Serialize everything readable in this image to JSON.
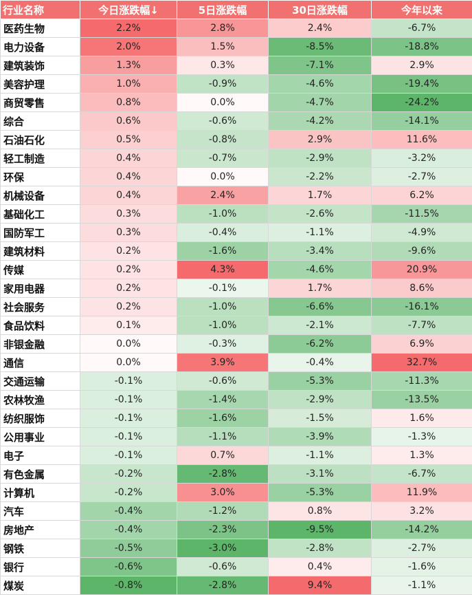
{
  "table": {
    "headers": [
      "行业名称",
      "今日涨跌幅↓",
      "5日涨跌幅",
      "30日涨跌幅",
      "今年以来"
    ],
    "colors": {
      "header_bg": "#f0716f",
      "positive_max": "#f56a6c",
      "negative_max": "#5db56a",
      "neutral": "#ffffff"
    },
    "rows": [
      [
        "医药生物",
        "2.2%",
        "2.8%",
        "2.4%",
        "-6.7%"
      ],
      [
        "电力设备",
        "2.0%",
        "1.5%",
        "-8.5%",
        "-18.8%"
      ],
      [
        "建筑装饰",
        "1.3%",
        "0.3%",
        "-7.1%",
        "2.9%"
      ],
      [
        "美容护理",
        "1.0%",
        "-0.9%",
        "-4.6%",
        "-19.4%"
      ],
      [
        "商贸零售",
        "0.8%",
        "0.0%",
        "-4.7%",
        "-24.2%"
      ],
      [
        "综合",
        "0.6%",
        "-0.6%",
        "-4.2%",
        "-14.1%"
      ],
      [
        "石油石化",
        "0.5%",
        "-0.8%",
        "2.9%",
        "11.6%"
      ],
      [
        "轻工制造",
        "0.4%",
        "-0.7%",
        "-2.9%",
        "-3.2%"
      ],
      [
        "环保",
        "0.4%",
        "0.0%",
        "-2.2%",
        "-2.7%"
      ],
      [
        "机械设备",
        "0.4%",
        "2.4%",
        "1.7%",
        "6.2%"
      ],
      [
        "基础化工",
        "0.3%",
        "-1.0%",
        "-2.6%",
        "-11.5%"
      ],
      [
        "国防军工",
        "0.3%",
        "-0.4%",
        "-1.1%",
        "-4.9%"
      ],
      [
        "建筑材料",
        "0.2%",
        "-1.6%",
        "-3.4%",
        "-9.6%"
      ],
      [
        "传媒",
        "0.2%",
        "4.3%",
        "-4.6%",
        "20.9%"
      ],
      [
        "家用电器",
        "0.2%",
        "-0.1%",
        "1.7%",
        "8.6%"
      ],
      [
        "社会服务",
        "0.2%",
        "-1.0%",
        "-6.6%",
        "-16.1%"
      ],
      [
        "食品饮料",
        "0.1%",
        "-1.0%",
        "-2.1%",
        "-7.7%"
      ],
      [
        "非银金融",
        "0.0%",
        "-0.3%",
        "-6.2%",
        "6.9%"
      ],
      [
        "通信",
        "0.0%",
        "3.9%",
        "-0.4%",
        "32.7%"
      ],
      [
        "交通运输",
        "-0.1%",
        "-0.6%",
        "-5.3%",
        "-11.3%"
      ],
      [
        "农林牧渔",
        "-0.1%",
        "-1.4%",
        "-2.9%",
        "-13.5%"
      ],
      [
        "纺织服饰",
        "-0.1%",
        "-1.6%",
        "-1.5%",
        "1.6%"
      ],
      [
        "公用事业",
        "-0.1%",
        "-1.1%",
        "-3.9%",
        "-1.3%"
      ],
      [
        "电子",
        "-0.1%",
        "0.7%",
        "-1.1%",
        "1.3%"
      ],
      [
        "有色金属",
        "-0.2%",
        "-2.8%",
        "-3.1%",
        "-6.7%"
      ],
      [
        "计算机",
        "-0.2%",
        "3.0%",
        "-5.3%",
        "11.9%"
      ],
      [
        "汽车",
        "-0.4%",
        "-1.2%",
        "0.8%",
        "3.2%"
      ],
      [
        "房地产",
        "-0.4%",
        "-2.3%",
        "-9.5%",
        "-14.2%"
      ],
      [
        "钢铁",
        "-0.5%",
        "-3.0%",
        "-2.8%",
        "-2.7%"
      ],
      [
        "银行",
        "-0.6%",
        "-0.6%",
        "0.4%",
        "-1.6%"
      ],
      [
        "煤炭",
        "-0.8%",
        "-2.8%",
        "9.4%",
        "-1.1%"
      ]
    ]
  }
}
